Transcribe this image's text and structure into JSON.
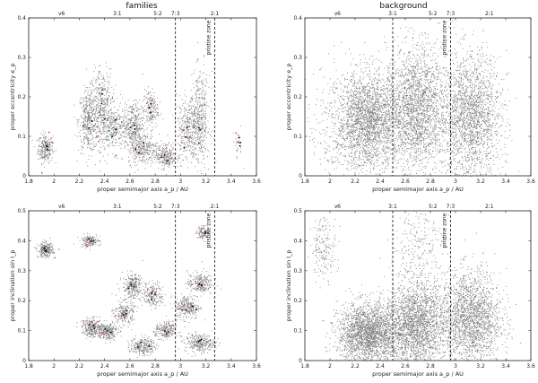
{
  "titles": {
    "left": "families",
    "right": "background"
  },
  "chart_data": [
    {
      "id": "families-ecc",
      "type": "scatter",
      "xlabel": "proper semimajor axis a_p / AU",
      "ylabel": "proper eccentricity e_p",
      "xlim": [
        1.8,
        3.6
      ],
      "ylim": [
        0,
        0.4
      ],
      "xticks": [
        "1.8",
        "2",
        "2.2",
        "2.4",
        "2.6",
        "2.8",
        "3",
        "3.2",
        "3.4",
        "3.6"
      ],
      "yticks": [
        "0",
        "0.1",
        "0.2",
        "0.3",
        "0.4"
      ],
      "resonances": [
        "ν6",
        "3:1",
        "5:2",
        "7:3",
        "2:1"
      ],
      "dashed_lines_x": [
        2.96,
        3.27
      ],
      "annotation": "pristine zone",
      "clusters": [
        {
          "x": 1.93,
          "y": 0.07,
          "sx": 0.03,
          "sy": 0.018,
          "n": 260
        },
        {
          "x": 2.27,
          "y": 0.14,
          "sx": 0.04,
          "sy": 0.04,
          "n": 420
        },
        {
          "x": 2.38,
          "y": 0.17,
          "sx": 0.04,
          "sy": 0.05,
          "n": 420
        },
        {
          "x": 2.48,
          "y": 0.12,
          "sx": 0.05,
          "sy": 0.03,
          "n": 260
        },
        {
          "x": 2.62,
          "y": 0.13,
          "sx": 0.04,
          "sy": 0.03,
          "n": 320
        },
        {
          "x": 2.7,
          "y": 0.07,
          "sx": 0.06,
          "sy": 0.02,
          "n": 320
        },
        {
          "x": 2.76,
          "y": 0.17,
          "sx": 0.03,
          "sy": 0.025,
          "n": 180
        },
        {
          "x": 2.88,
          "y": 0.05,
          "sx": 0.04,
          "sy": 0.015,
          "n": 240
        },
        {
          "x": 3.05,
          "y": 0.12,
          "sx": 0.04,
          "sy": 0.04,
          "n": 300
        },
        {
          "x": 3.15,
          "y": 0.14,
          "sx": 0.04,
          "sy": 0.06,
          "n": 450
        },
        {
          "x": 3.45,
          "y": 0.08,
          "sx": 0.02,
          "sy": 0.02,
          "n": 25
        }
      ]
    },
    {
      "id": "background-ecc",
      "type": "scatter",
      "xlabel": "proper semimajor axis a_p / AU",
      "ylabel": "proper eccentricity e_p",
      "xlim": [
        1.8,
        3.6
      ],
      "ylim": [
        0,
        0.4
      ],
      "xticks": [
        "1.8",
        "2",
        "2.2",
        "2.4",
        "2.6",
        "2.8",
        "3",
        "3.2",
        "3.4",
        "3.6"
      ],
      "yticks": [
        "0",
        "0.1",
        "0.2",
        "0.3",
        "0.4"
      ],
      "resonances": [
        "ν6",
        "3:1",
        "5:2",
        "7:3",
        "2:1"
      ],
      "dashed_lines_x": [
        2.5,
        2.96
      ],
      "annotation": "pristine zone",
      "clusters": [
        {
          "x": 2.3,
          "y": 0.14,
          "sx": 0.12,
          "sy": 0.06,
          "n": 2200
        },
        {
          "x": 2.68,
          "y": 0.17,
          "sx": 0.12,
          "sy": 0.08,
          "n": 2200
        },
        {
          "x": 3.12,
          "y": 0.15,
          "sx": 0.12,
          "sy": 0.08,
          "n": 2000
        },
        {
          "x": 2.05,
          "y": 0.12,
          "sx": 0.12,
          "sy": 0.08,
          "n": 250
        }
      ]
    },
    {
      "id": "families-inc",
      "type": "scatter",
      "xlabel": "proper semimajor axis a_p / AU",
      "ylabel": "proper inclination sin I_p",
      "xlim": [
        1.8,
        3.6
      ],
      "ylim": [
        0,
        0.5
      ],
      "xticks": [
        "1.8",
        "2",
        "2.2",
        "2.4",
        "2.6",
        "2.8",
        "3",
        "3.2",
        "3.4",
        "3.6"
      ],
      "yticks": [
        "0",
        "0.1",
        "0.2",
        "0.3",
        "0.4",
        "0.5"
      ],
      "resonances": [
        "ν6",
        "3:1",
        "5:2",
        "7:3",
        "2:1"
      ],
      "dashed_lines_x": [
        2.96,
        3.27
      ],
      "annotation": "pristine zone",
      "clusters": [
        {
          "x": 1.93,
          "y": 0.37,
          "sx": 0.03,
          "sy": 0.012,
          "n": 260
        },
        {
          "x": 2.3,
          "y": 0.11,
          "sx": 0.04,
          "sy": 0.015,
          "n": 260
        },
        {
          "x": 2.28,
          "y": 0.4,
          "sx": 0.04,
          "sy": 0.01,
          "n": 150
        },
        {
          "x": 2.42,
          "y": 0.1,
          "sx": 0.04,
          "sy": 0.015,
          "n": 240
        },
        {
          "x": 2.55,
          "y": 0.16,
          "sx": 0.04,
          "sy": 0.02,
          "n": 220
        },
        {
          "x": 2.62,
          "y": 0.25,
          "sx": 0.04,
          "sy": 0.02,
          "n": 260
        },
        {
          "x": 2.7,
          "y": 0.05,
          "sx": 0.05,
          "sy": 0.015,
          "n": 240
        },
        {
          "x": 2.78,
          "y": 0.22,
          "sx": 0.04,
          "sy": 0.02,
          "n": 200
        },
        {
          "x": 2.88,
          "y": 0.1,
          "sx": 0.04,
          "sy": 0.015,
          "n": 220
        },
        {
          "x": 3.05,
          "y": 0.18,
          "sx": 0.05,
          "sy": 0.02,
          "n": 280
        },
        {
          "x": 3.15,
          "y": 0.06,
          "sx": 0.06,
          "sy": 0.015,
          "n": 280
        },
        {
          "x": 3.15,
          "y": 0.26,
          "sx": 0.05,
          "sy": 0.02,
          "n": 240
        },
        {
          "x": 3.18,
          "y": 0.43,
          "sx": 0.03,
          "sy": 0.01,
          "n": 100
        }
      ]
    },
    {
      "id": "background-inc",
      "type": "scatter",
      "xlabel": "proper semimajor axis a_p / AU",
      "ylabel": "proper inclination sin I_p",
      "xlim": [
        1.8,
        3.6
      ],
      "ylim": [
        0,
        0.5
      ],
      "xticks": [
        "1.8",
        "2",
        "2.2",
        "2.4",
        "2.6",
        "2.8",
        "3",
        "3.2",
        "3.4",
        "3.6"
      ],
      "yticks": [
        "0",
        "0.1",
        "0.2",
        "0.3",
        "0.4",
        "0.5"
      ],
      "resonances": [
        "ν6",
        "3:1",
        "5:2",
        "7:3",
        "2:1"
      ],
      "dashed_lines_x": [
        2.5,
        2.96
      ],
      "annotation": "pristine zone",
      "clusters": [
        {
          "x": 2.3,
          "y": 0.09,
          "sx": 0.12,
          "sy": 0.05,
          "n": 2200
        },
        {
          "x": 2.68,
          "y": 0.12,
          "sx": 0.12,
          "sy": 0.07,
          "n": 2200
        },
        {
          "x": 3.12,
          "y": 0.14,
          "sx": 0.12,
          "sy": 0.08,
          "n": 2000
        },
        {
          "x": 1.95,
          "y": 0.38,
          "sx": 0.05,
          "sy": 0.05,
          "n": 180
        },
        {
          "x": 2.7,
          "y": 0.38,
          "sx": 0.1,
          "sy": 0.08,
          "n": 250
        }
      ]
    }
  ]
}
